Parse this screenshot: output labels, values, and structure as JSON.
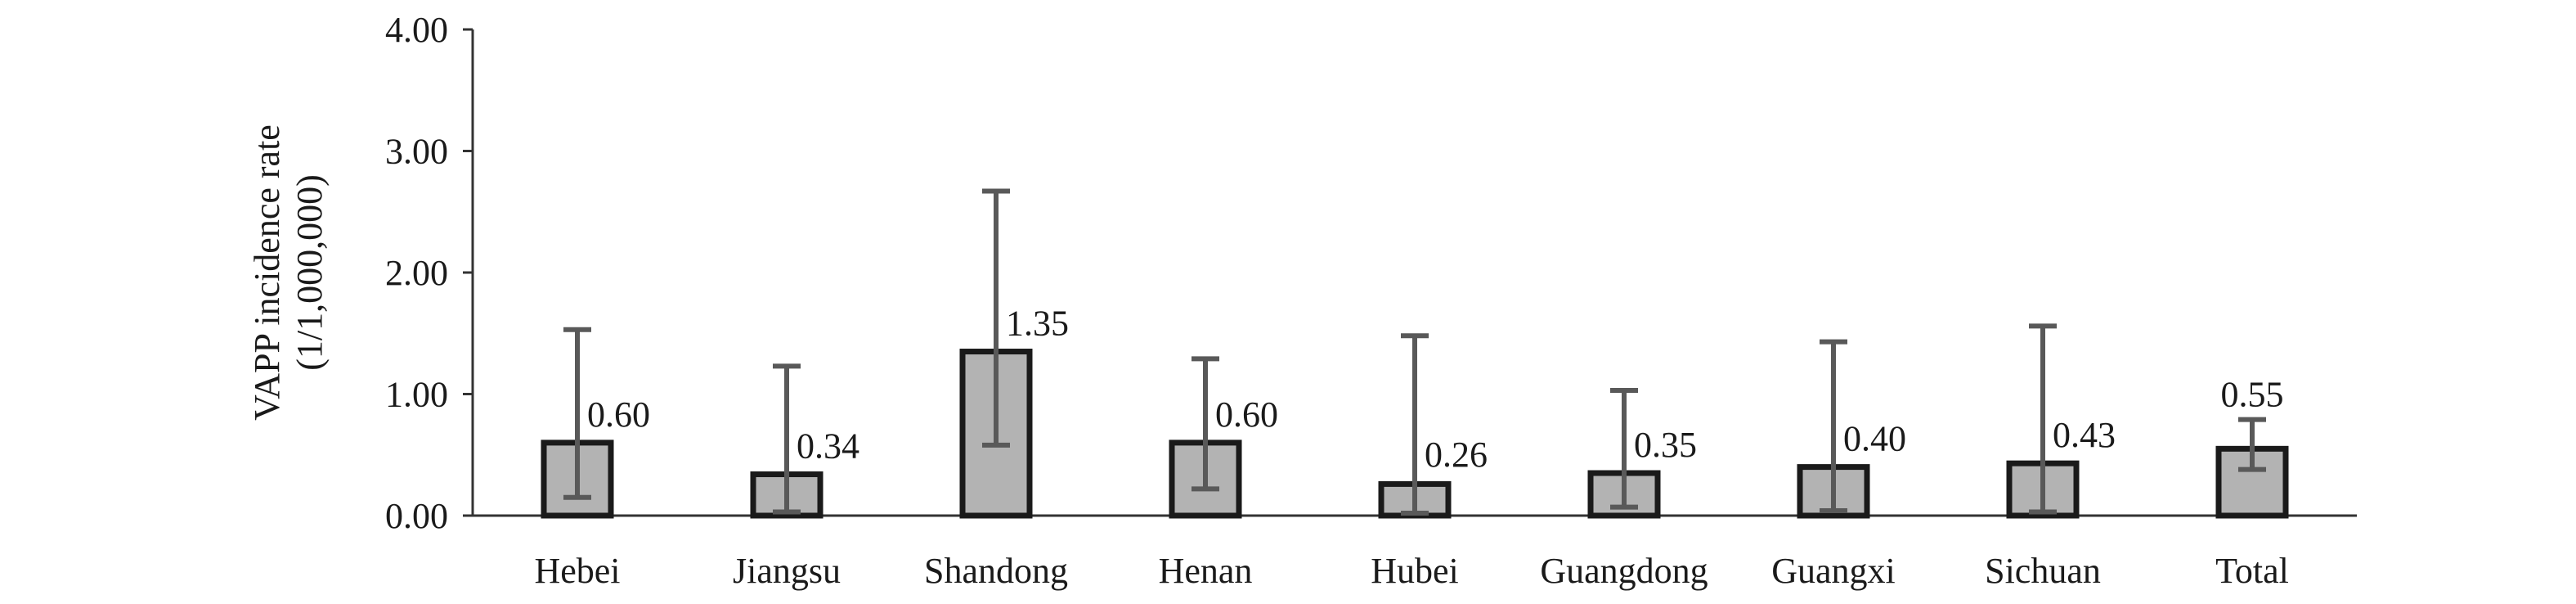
{
  "chart_data": {
    "type": "bar",
    "title": "",
    "xlabel": "",
    "ylabel_lines": [
      "VAPP incidence rate",
      "(1/1,000,000)"
    ],
    "ylim": [
      0,
      4
    ],
    "yticks": [
      "0.00",
      "1.00",
      "2.00",
      "3.00",
      "4.00"
    ],
    "grid": false,
    "legend": "none",
    "categories": [
      "Hebei",
      "Jiangsu",
      "Shandong",
      "Henan",
      "Hubei",
      "Guangdong",
      "Guangxi",
      "Sichuan",
      "Total"
    ],
    "values": [
      0.6,
      0.34,
      1.35,
      0.6,
      0.26,
      0.35,
      0.4,
      0.43,
      0.55
    ],
    "data_labels": [
      "0.60",
      "0.34",
      "1.35",
      "0.60",
      "0.26",
      "0.35",
      "0.40",
      "0.43",
      "0.55"
    ],
    "error_lower": [
      0.15,
      0.03,
      0.58,
      0.22,
      0.02,
      0.07,
      0.04,
      0.03,
      0.38
    ],
    "error_upper": [
      1.53,
      1.23,
      2.67,
      1.29,
      1.48,
      1.03,
      1.43,
      1.56,
      0.79
    ],
    "colors": {
      "bar_fill": "#b3b3b3",
      "bar_stroke": "#1a1a1a",
      "error_bar": "#595959",
      "axis": "#333333",
      "text": "#1a1a1a"
    }
  }
}
